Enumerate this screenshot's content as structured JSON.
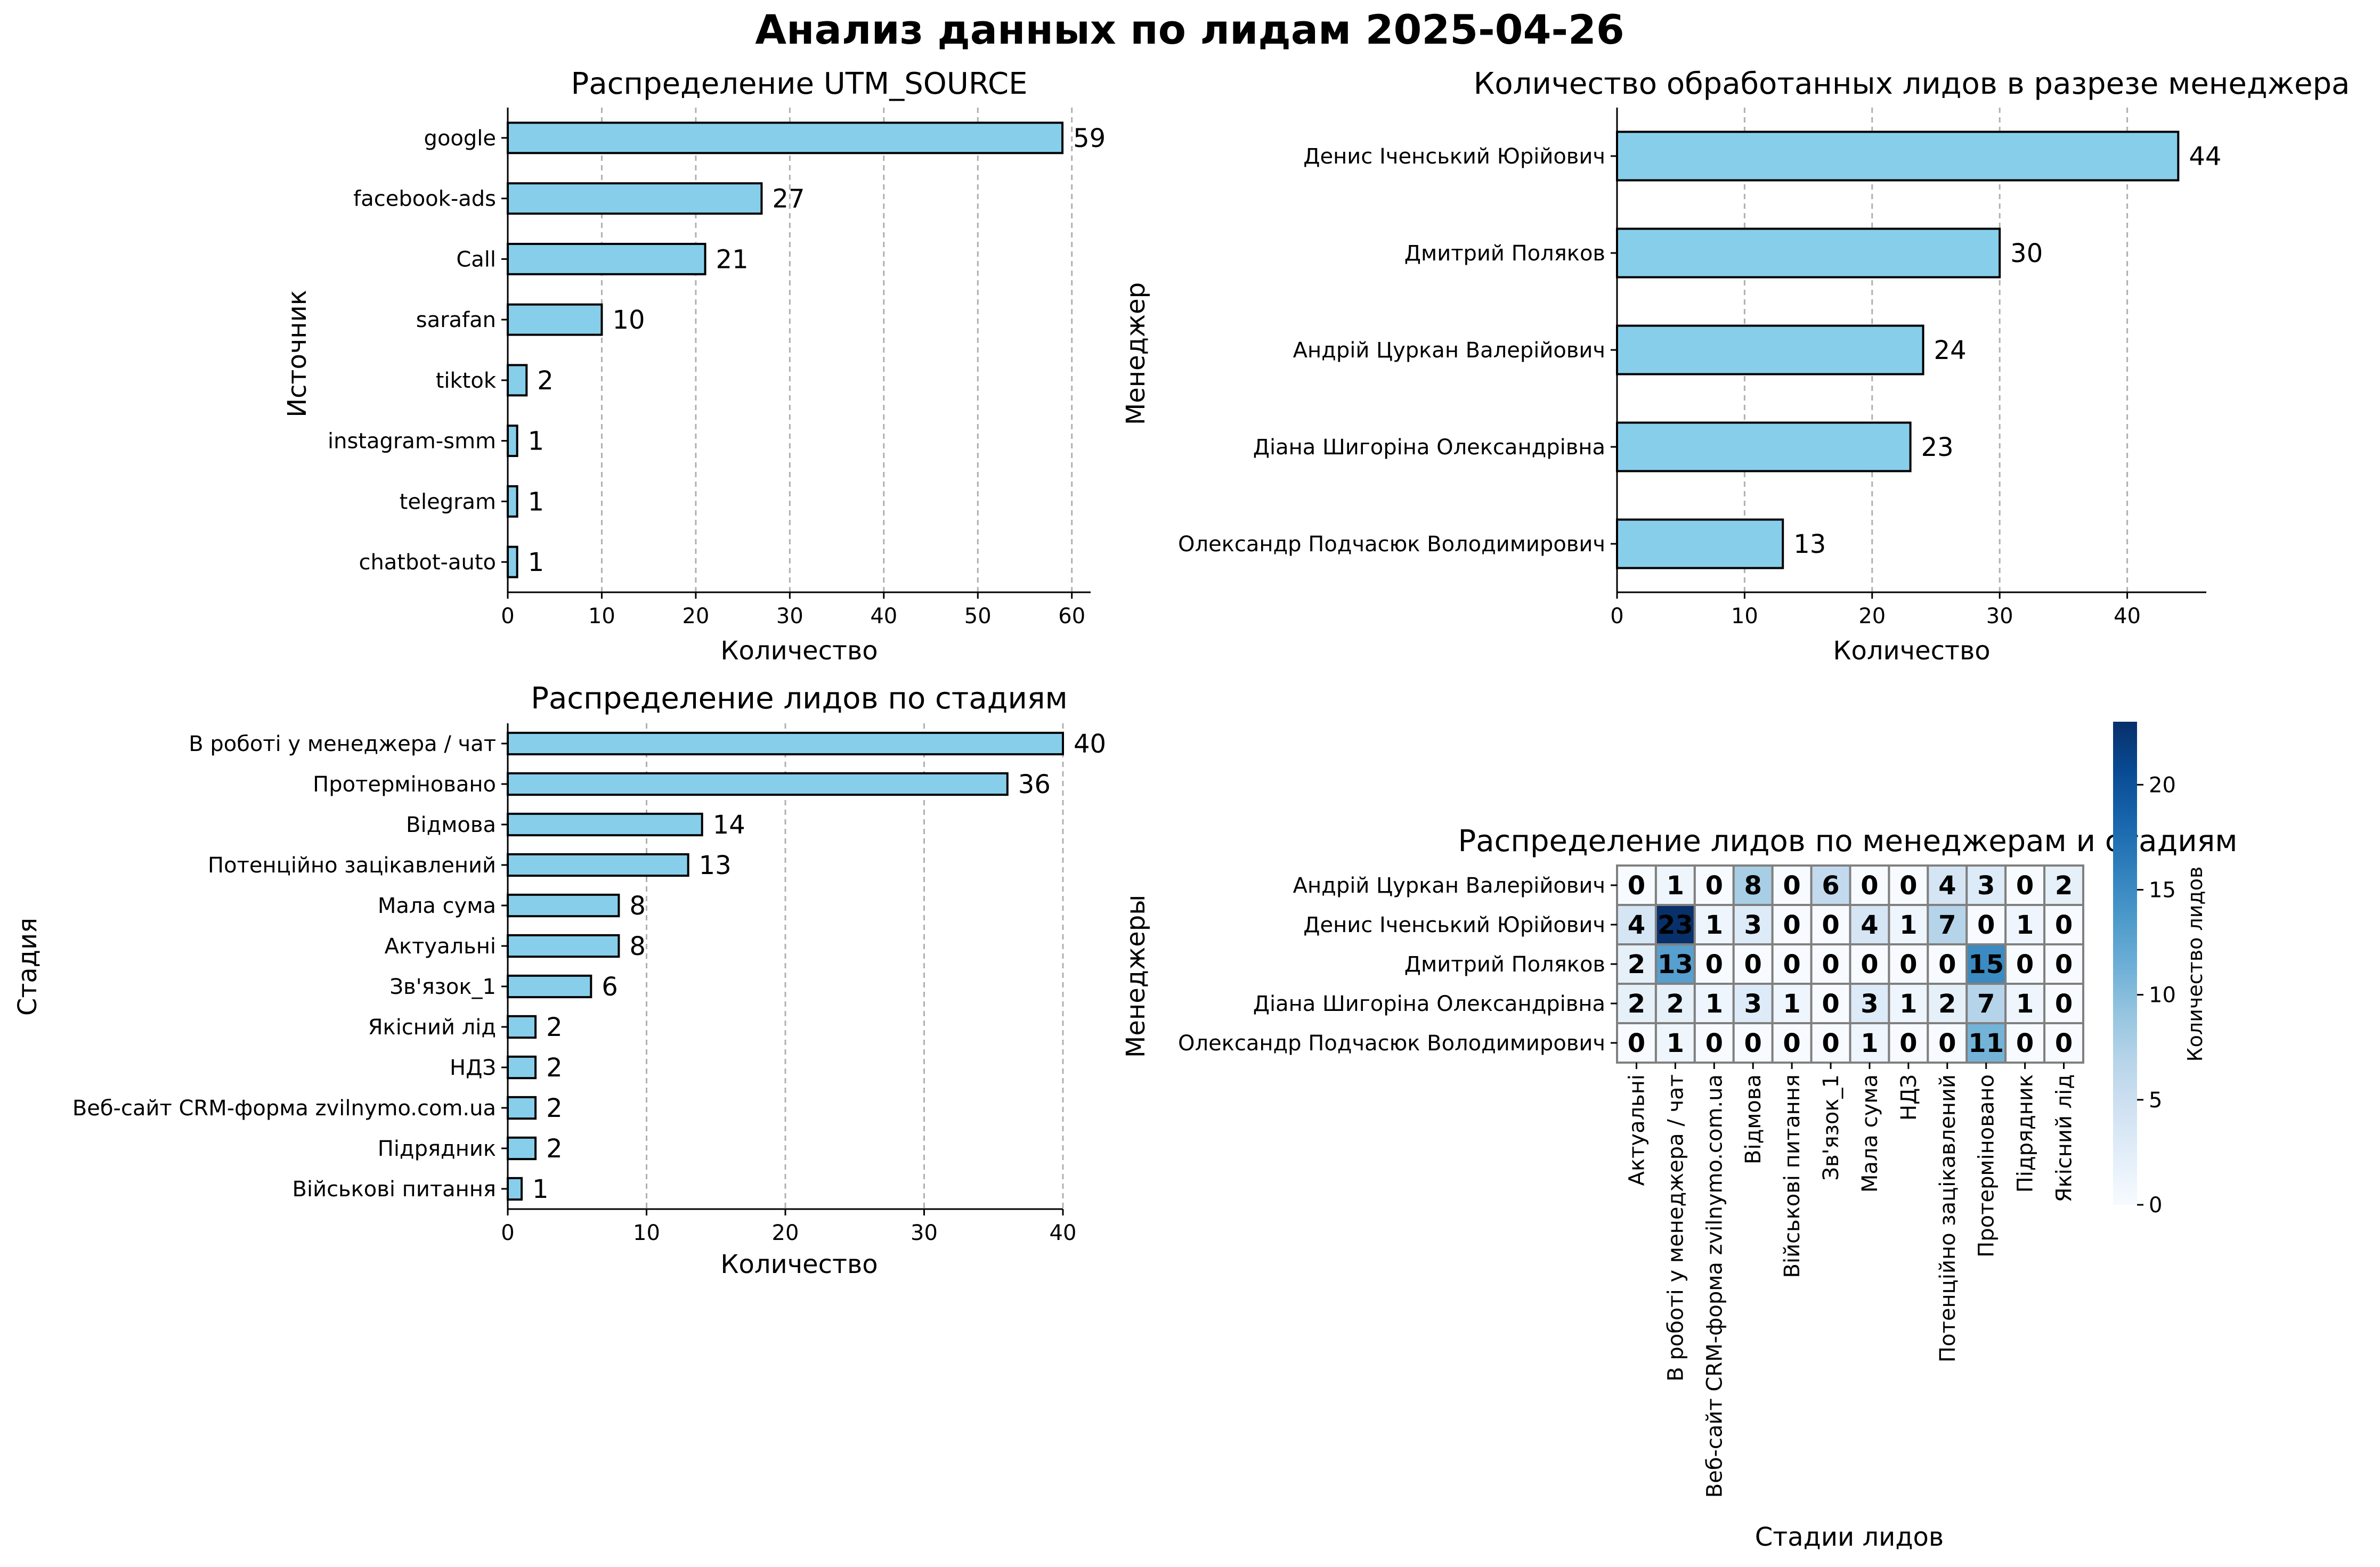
{
  "figure": {
    "title": "Анализ данных по лидам 2025-04-26"
  },
  "chart_data": [
    {
      "type": "bar",
      "orientation": "horizontal",
      "title": "Распределение UTM_SOURCE",
      "xlabel": "Количество",
      "ylabel": "Источник",
      "categories": [
        "google",
        "facebook-ads",
        "Call",
        "sarafan",
        "tiktok",
        "instagram-smm",
        "telegram",
        "chatbot-auto"
      ],
      "values": [
        59,
        27,
        21,
        10,
        2,
        1,
        1,
        1
      ],
      "xlim": [
        0,
        62
      ],
      "xticks": [
        0,
        10,
        20,
        30,
        40,
        50,
        60
      ],
      "grid": "x, dashed",
      "bar_color": "#87CEEB"
    },
    {
      "type": "bar",
      "orientation": "horizontal",
      "title": "Количество обработанных лидов в разрезе менеджера",
      "xlabel": "Количество",
      "ylabel": "Менеджер",
      "categories": [
        "Денис Іченський Юрійович",
        "Дмитрий Поляков",
        "Андрій Цуркан Валерійович",
        "Діана Шигоріна Олександрівна",
        "Олександр Подчасюк Володимирович"
      ],
      "values": [
        44,
        30,
        24,
        23,
        13
      ],
      "xlim": [
        0,
        46.2
      ],
      "xticks": [
        0,
        10,
        20,
        30,
        40
      ],
      "grid": "x, dashed",
      "bar_color": "#87CEEB"
    },
    {
      "type": "bar",
      "orientation": "horizontal",
      "title": "Распределение лидов по стадиям",
      "xlabel": "Количество",
      "ylabel": "Стадия",
      "categories": [
        "В роботі у менеджера / чат",
        "Протерміновано",
        "Відмова",
        "Потенційно зацікавлений",
        "Мала сума",
        "Актуальні",
        "Зв'язок_1",
        "Якісний лід",
        "НДЗ",
        "Веб-сайт CRM-форма zvilnymo.com.ua",
        "Підрядник",
        "Військові питання"
      ],
      "values": [
        40,
        36,
        14,
        13,
        8,
        8,
        6,
        2,
        2,
        2,
        2,
        1
      ],
      "xlim": [
        0,
        40
      ],
      "xticks": [
        0,
        10,
        20,
        30,
        40
      ],
      "grid": "x, dashed",
      "bar_color": "#87CEEB"
    },
    {
      "type": "heatmap",
      "title": "Распределение лидов по менеджерам и стадиям",
      "xlabel": "Стадии лидов",
      "ylabel": "Менеджеры",
      "colorbar_label": "Количество лидов",
      "colormap": "Blues",
      "vmin": 0,
      "vmax": 23,
      "colorbar_ticks": [
        0,
        5,
        10,
        15,
        20
      ],
      "columns": [
        "Актуальні",
        "В роботі у менеджера / чат",
        "Веб-сайт CRM-форма zvilnymo.com.ua",
        "Відмова",
        "Військові питання",
        "Зв'язок_1",
        "Мала сума",
        "НДЗ",
        "Потенційно зацікавлений",
        "Протерміновано",
        "Підрядник",
        "Якісний лід"
      ],
      "rows": [
        "Андрій Цуркан Валерійович",
        "Денис Іченський Юрійович",
        "Дмитрий Поляков",
        "Діана Шигоріна Олександрівна",
        "Олександр Подчасюк Володимирович"
      ],
      "values": [
        [
          0,
          1,
          0,
          8,
          0,
          6,
          0,
          0,
          4,
          3,
          0,
          2
        ],
        [
          4,
          23,
          1,
          3,
          0,
          0,
          4,
          1,
          7,
          0,
          1,
          0
        ],
        [
          2,
          13,
          0,
          0,
          0,
          0,
          0,
          0,
          0,
          15,
          0,
          0
        ],
        [
          2,
          2,
          1,
          3,
          1,
          0,
          3,
          1,
          2,
          7,
          1,
          0
        ],
        [
          0,
          1,
          0,
          0,
          0,
          0,
          1,
          0,
          0,
          11,
          0,
          0
        ]
      ]
    }
  ]
}
